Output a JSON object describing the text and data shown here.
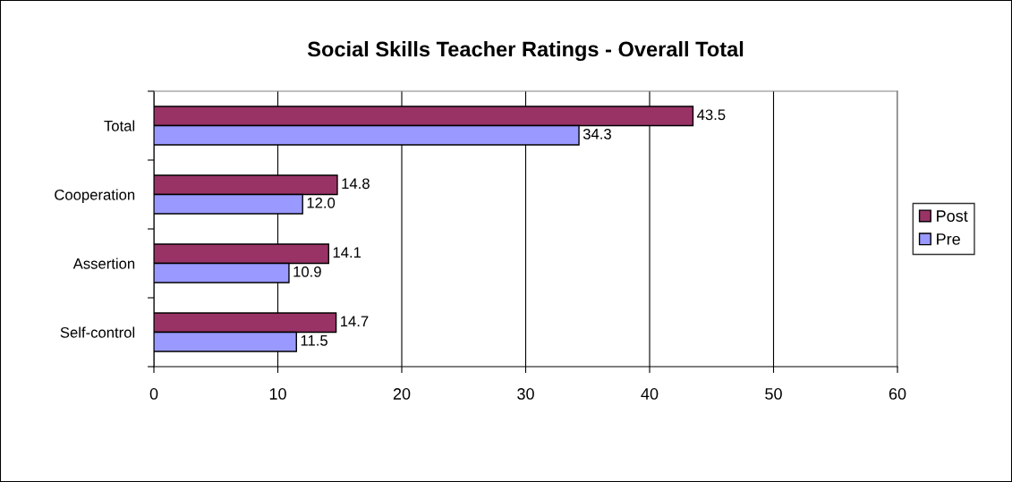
{
  "chart_data": {
    "type": "bar",
    "orientation": "horizontal",
    "title": "Social Skills Teacher Ratings - Overall Total",
    "categories": [
      "Total",
      "Cooperation",
      "Assertion",
      "Self-control"
    ],
    "series": [
      {
        "name": "Post",
        "color": "#993366",
        "values": [
          43.5,
          14.8,
          14.1,
          14.7
        ],
        "value_labels": [
          "43.5",
          "14.8",
          "14.1",
          "14.7"
        ]
      },
      {
        "name": "Pre",
        "color": "#9999ff",
        "values": [
          34.3,
          12.0,
          10.9,
          11.5
        ],
        "value_labels": [
          "34.3",
          "12.0",
          "10.9",
          "11.5"
        ]
      }
    ],
    "xlim": [
      0,
      60
    ],
    "xticks": [
      0,
      10,
      20,
      30,
      40,
      50,
      60
    ],
    "grid": "x",
    "legend": "right"
  }
}
